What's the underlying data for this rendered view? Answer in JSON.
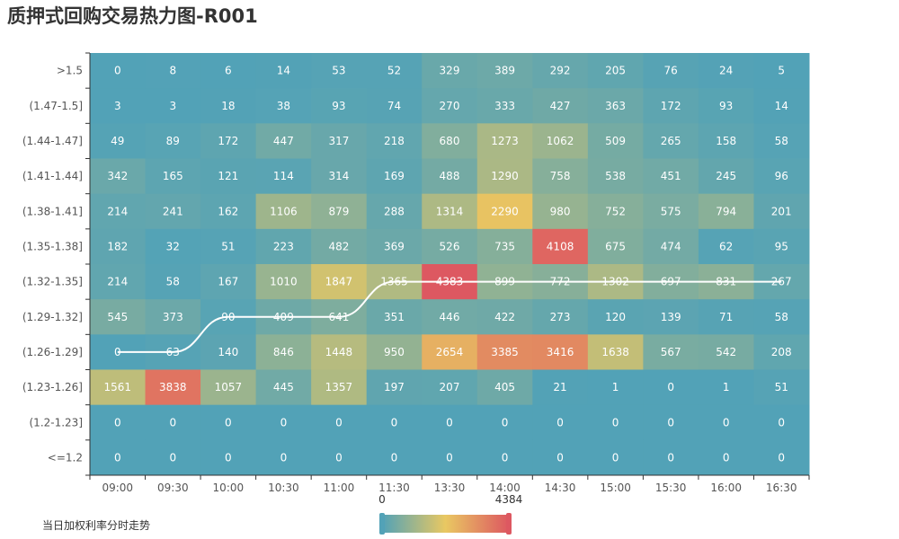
{
  "title": "质押式回购交易热力图-R001",
  "legend_label": "当日加权利率分时走势",
  "colors": {
    "scale": [
      "#52a2b7",
      "#e9c862",
      "#dd5861"
    ],
    "trend_line": "#ffffff",
    "cell_text": "#ffffff",
    "axis_text": "#555555",
    "axis_line": "#333333",
    "handle": [
      "#52a2b7",
      "#dd5861"
    ]
  },
  "chart_data": {
    "type": "heatmap",
    "title": "质押式回购交易热力图-R001",
    "x_categories": [
      "09:00",
      "09:30",
      "10:00",
      "10:30",
      "11:00",
      "11:30",
      "13:30",
      "14:00",
      "14:30",
      "15:00",
      "15:30",
      "16:00",
      "16:30"
    ],
    "y_categories": [
      ">1.5",
      "(1.47-1.5]",
      "(1.44-1.47]",
      "(1.41-1.44]",
      "(1.38-1.41]",
      "(1.35-1.38]",
      "(1.32-1.35]",
      "(1.29-1.32]",
      "(1.26-1.29]",
      "(1.23-1.26]",
      "(1.2-1.23]",
      "<=1.2"
    ],
    "values": [
      [
        0,
        8,
        6,
        14,
        53,
        52,
        329,
        389,
        292,
        205,
        76,
        24,
        5
      ],
      [
        3,
        3,
        18,
        38,
        93,
        74,
        270,
        333,
        427,
        363,
        172,
        93,
        14
      ],
      [
        49,
        89,
        172,
        447,
        317,
        218,
        680,
        1273,
        1062,
        509,
        265,
        158,
        58
      ],
      [
        342,
        165,
        121,
        114,
        314,
        169,
        488,
        1290,
        758,
        538,
        451,
        245,
        96
      ],
      [
        214,
        241,
        162,
        1106,
        879,
        288,
        1314,
        2290,
        980,
        752,
        575,
        794,
        201
      ],
      [
        182,
        32,
        51,
        223,
        482,
        369,
        526,
        735,
        4108,
        675,
        474,
        62,
        95
      ],
      [
        214,
        58,
        167,
        1010,
        1847,
        1365,
        4383,
        899,
        772,
        1302,
        697,
        831,
        267
      ],
      [
        545,
        373,
        90,
        409,
        641,
        351,
        446,
        422,
        273,
        120,
        139,
        71,
        58
      ],
      [
        0,
        63,
        140,
        846,
        1448,
        950,
        2654,
        3385,
        3416,
        1638,
        567,
        542,
        208
      ],
      [
        1561,
        3838,
        1057,
        445,
        1357,
        197,
        207,
        405,
        21,
        1,
        0,
        1,
        51
      ],
      [
        0,
        0,
        0,
        0,
        0,
        0,
        0,
        0,
        0,
        0,
        0,
        0,
        0
      ],
      [
        0,
        0,
        0,
        0,
        0,
        0,
        0,
        0,
        0,
        0,
        0,
        0,
        0
      ]
    ],
    "visual_map": {
      "min": 0,
      "max": 4384,
      "min_label": "0",
      "max_label": "4384"
    },
    "trend_series": {
      "name": "当日加权利率分时走势",
      "points": [
        {
          "x": "09:00",
          "y": "(1.26-1.29]"
        },
        {
          "x": "09:30",
          "y": "(1.26-1.29]"
        },
        {
          "x": "10:00",
          "y": "(1.29-1.32]"
        },
        {
          "x": "10:30",
          "y": "(1.29-1.32]"
        },
        {
          "x": "11:00",
          "y": "(1.29-1.32]"
        },
        {
          "x": "11:30",
          "y": "(1.32-1.35]"
        },
        {
          "x": "13:30",
          "y": "(1.32-1.35]"
        },
        {
          "x": "14:00",
          "y": "(1.32-1.35]"
        },
        {
          "x": "14:30",
          "y": "(1.32-1.35]"
        },
        {
          "x": "15:00",
          "y": "(1.32-1.35]"
        },
        {
          "x": "15:30",
          "y": "(1.32-1.35]"
        },
        {
          "x": "16:00",
          "y": "(1.32-1.35]"
        },
        {
          "x": "16:30",
          "y": "(1.32-1.35]"
        }
      ]
    }
  }
}
